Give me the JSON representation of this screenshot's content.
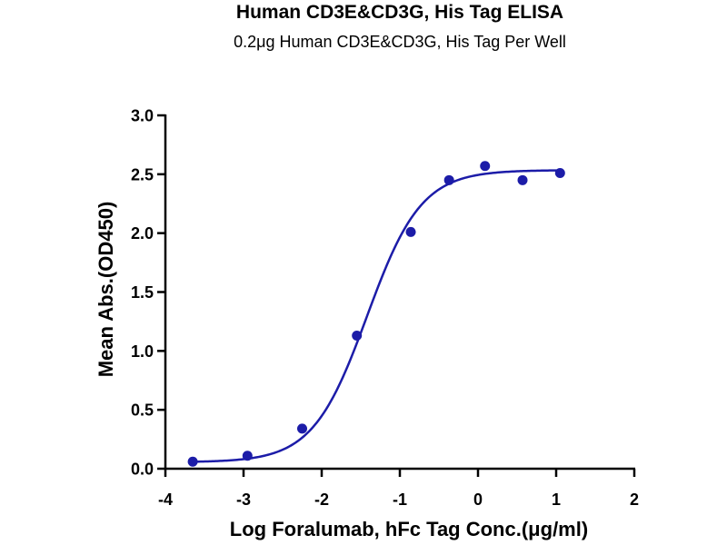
{
  "chart_data": {
    "type": "scatter",
    "title": "Human CD3E&CD3G, His Tag ELISA",
    "subtitle": "0.2μg Human CD3E&CD3G, His Tag Per Well",
    "xlabel": "Log Foralumab, hFc Tag Conc.(μg/ml)",
    "ylabel": "Mean Abs.(OD450)",
    "xlim": [
      -4,
      2
    ],
    "ylim": [
      0,
      3
    ],
    "x_ticks": [
      "-4",
      "-3",
      "-2",
      "-1",
      "0",
      "1",
      "2"
    ],
    "y_ticks": [
      "0.0",
      "0.5",
      "1.0",
      "1.5",
      "2.0",
      "2.5",
      "3.0"
    ],
    "grid": false,
    "series": [
      {
        "color": "#1c1ca8",
        "x": [
          -3.65,
          -2.95,
          -2.25,
          -1.55,
          -0.86,
          -0.37,
          0.09,
          0.57,
          1.05
        ],
        "y": [
          0.06,
          0.11,
          0.34,
          1.13,
          2.01,
          2.45,
          2.57,
          2.45,
          2.51
        ],
        "fit": "four-parameter logistic"
      }
    ]
  }
}
